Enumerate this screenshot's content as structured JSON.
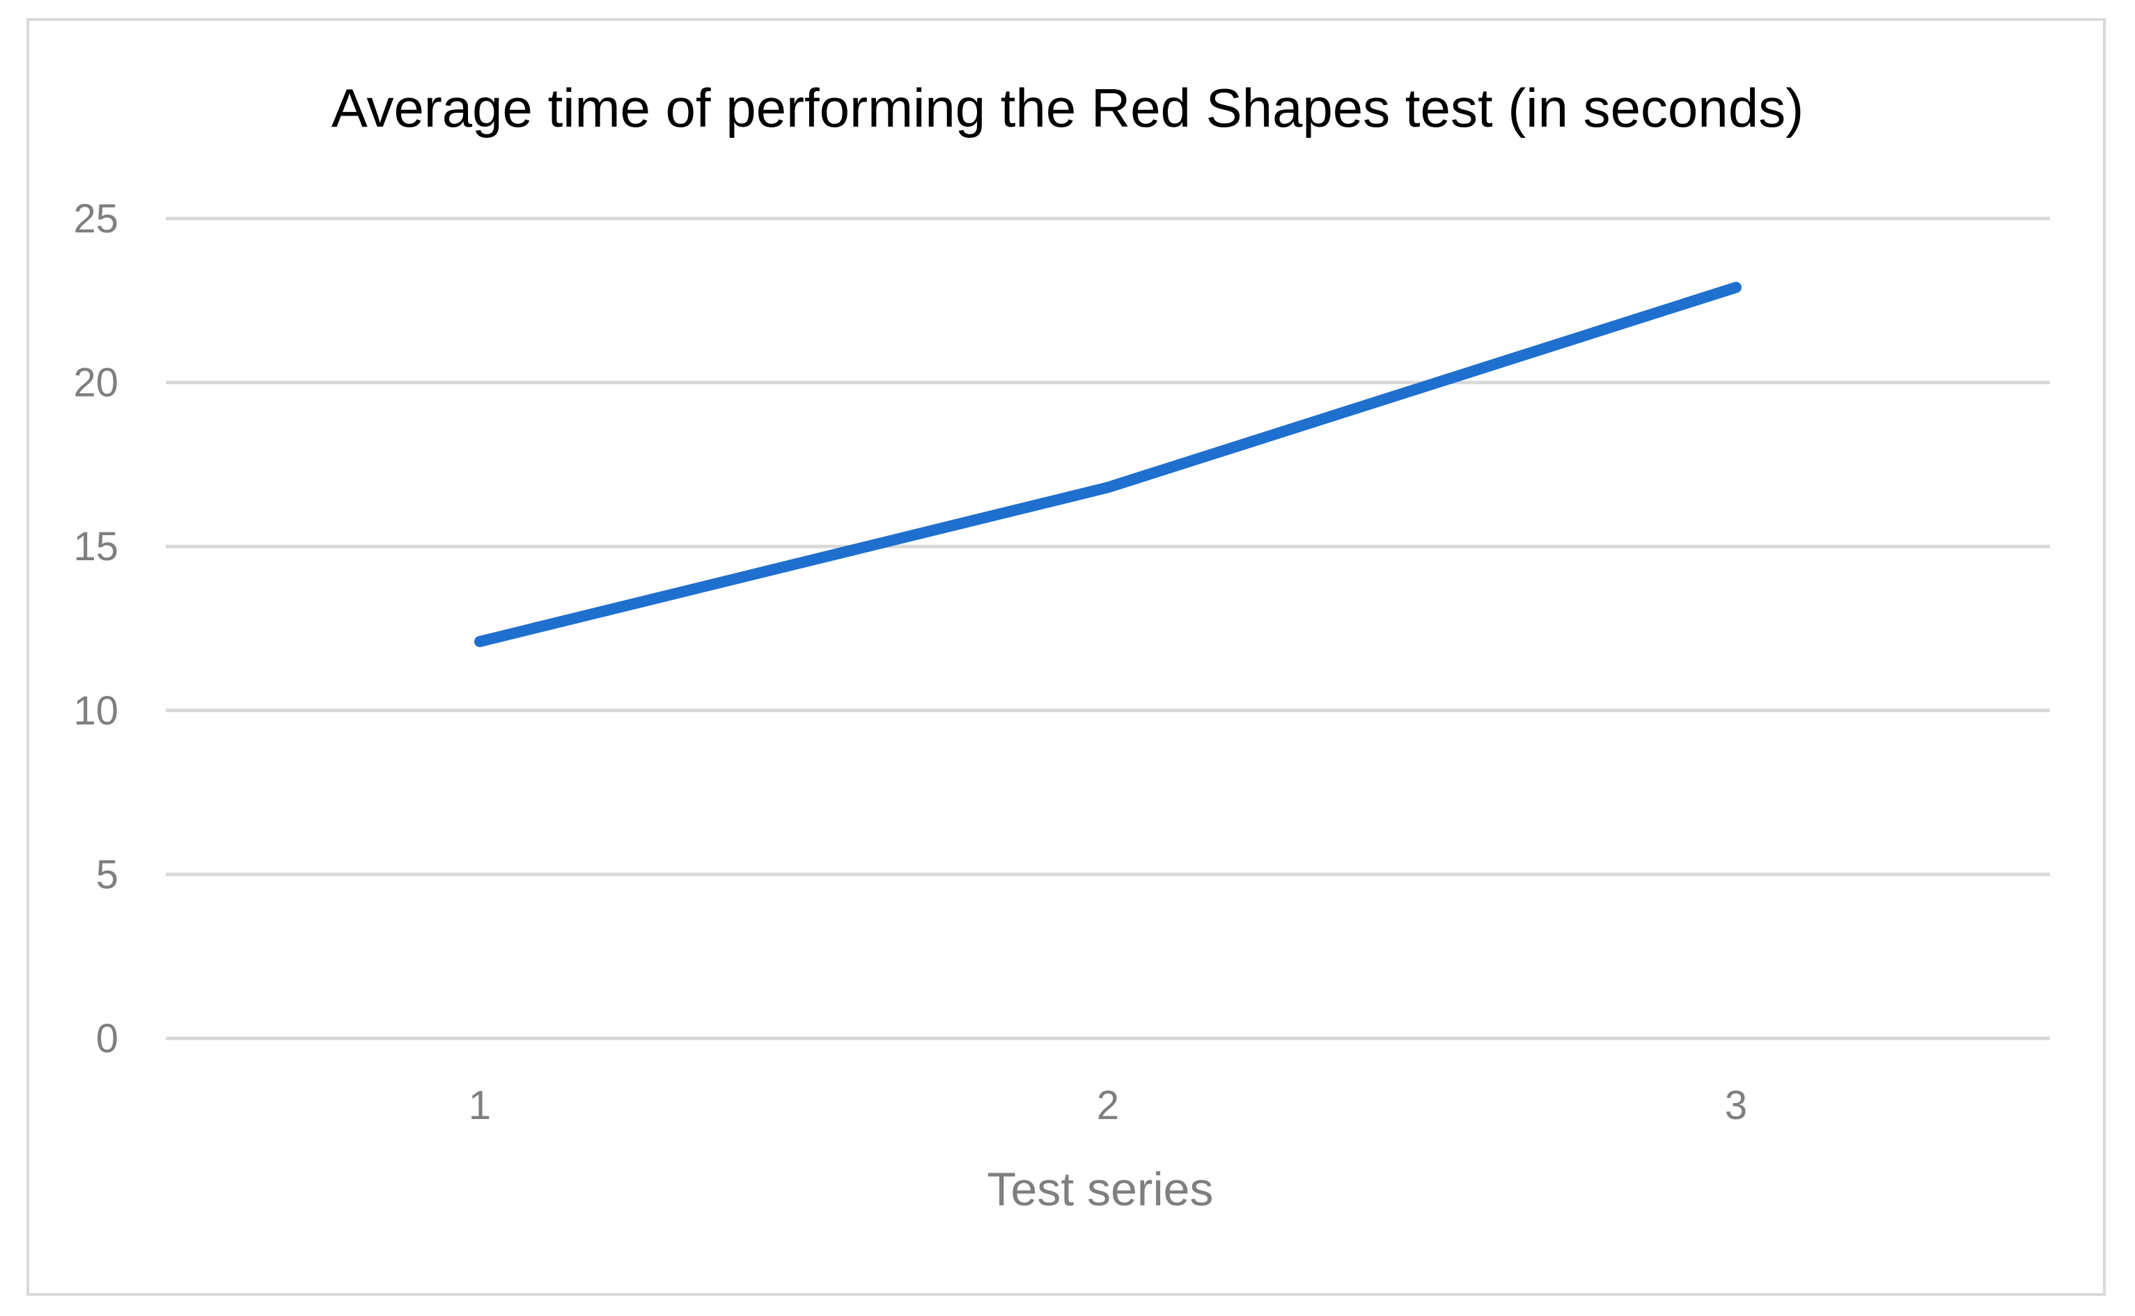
{
  "chart_data": {
    "type": "line",
    "title": "Average time of performing the Red Shapes test  (in seconds)",
    "xlabel": "Test series",
    "ylabel": "",
    "categories": [
      "1",
      "2",
      "3"
    ],
    "series": [
      {
        "values": [
          12.1,
          16.8,
          22.9
        ]
      }
    ],
    "yticks": [
      "0",
      "5",
      "10",
      "15",
      "20",
      "25"
    ],
    "ylim": [
      0,
      25
    ],
    "grid": true,
    "legend": "none",
    "colors": {
      "series": "#1f6fce",
      "grid": "#d9d9d9",
      "text": "#7f7f7f"
    }
  }
}
